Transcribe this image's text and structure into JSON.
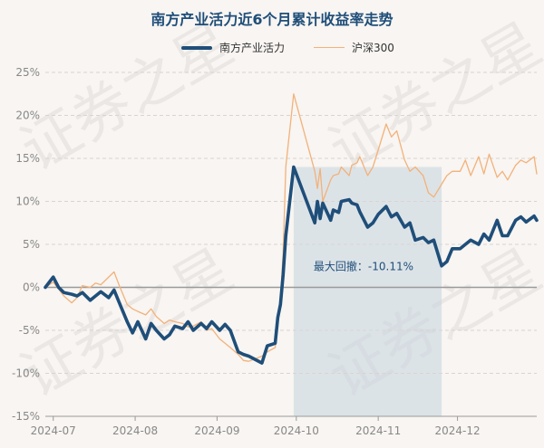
{
  "chart_data": {
    "type": "line",
    "title": "南方产业活力近6个月累计收益率走势",
    "xlabel": "",
    "ylabel": "",
    "ylim": [
      -15,
      25
    ],
    "y_ticks": [
      25,
      20,
      15,
      10,
      5,
      0,
      -5,
      -10,
      -15
    ],
    "y_tick_labels": [
      "25%",
      "20%",
      "15%",
      "10%",
      "5%",
      "0%",
      "-5%",
      "-10%",
      "-15%"
    ],
    "x_range": [
      "2024-06-28",
      "2024-12-31"
    ],
    "x_ticks": [
      "2024-07-01",
      "2024-08-01",
      "2024-09-01",
      "2024-10-01",
      "2024-11-01",
      "2024-12-01"
    ],
    "x_tick_labels": [
      "2024-07",
      "2024-08",
      "2024-09",
      "2024-10",
      "2024-11",
      "2024-12"
    ],
    "grid": "horizontal dashed",
    "legend_position": "top-center",
    "series": [
      {
        "name": "南方产业活力",
        "color": "#1f4e79",
        "points": [
          [
            "2024-06-28",
            0
          ],
          [
            "2024-07-01",
            1.2
          ],
          [
            "2024-07-03",
            0
          ],
          [
            "2024-07-05",
            -0.6
          ],
          [
            "2024-07-08",
            -0.8
          ],
          [
            "2024-07-10",
            -1.0
          ],
          [
            "2024-07-12",
            -0.6
          ],
          [
            "2024-07-15",
            -1.5
          ],
          [
            "2024-07-17",
            -1.0
          ],
          [
            "2024-07-19",
            -0.5
          ],
          [
            "2024-07-22",
            -1.2
          ],
          [
            "2024-07-24",
            -0.3
          ],
          [
            "2024-07-26",
            -1.8
          ],
          [
            "2024-07-29",
            -4.0
          ],
          [
            "2024-07-31",
            -5.3
          ],
          [
            "2024-08-02",
            -4.0
          ],
          [
            "2024-08-05",
            -6.0
          ],
          [
            "2024-08-07",
            -4.2
          ],
          [
            "2024-08-09",
            -5.0
          ],
          [
            "2024-08-12",
            -6.0
          ],
          [
            "2024-08-14",
            -5.5
          ],
          [
            "2024-08-16",
            -4.5
          ],
          [
            "2024-08-19",
            -4.8
          ],
          [
            "2024-08-21",
            -4.0
          ],
          [
            "2024-08-23",
            -5.0
          ],
          [
            "2024-08-26",
            -4.2
          ],
          [
            "2024-08-28",
            -4.8
          ],
          [
            "2024-08-30",
            -4.0
          ],
          [
            "2024-09-02",
            -5.0
          ],
          [
            "2024-09-04",
            -4.3
          ],
          [
            "2024-09-06",
            -5.0
          ],
          [
            "2024-09-09",
            -7.5
          ],
          [
            "2024-09-11",
            -7.8
          ],
          [
            "2024-09-13",
            -8.0
          ],
          [
            "2024-09-18",
            -8.8
          ],
          [
            "2024-09-20",
            -6.8
          ],
          [
            "2024-09-23",
            -6.5
          ],
          [
            "2024-09-24",
            -3.5
          ],
          [
            "2024-09-25",
            -2.0
          ],
          [
            "2024-09-26",
            1.5
          ],
          [
            "2024-09-27",
            6.0
          ],
          [
            "2024-09-30",
            14.0
          ],
          [
            "2024-10-08",
            7.5
          ],
          [
            "2024-10-09",
            10.0
          ],
          [
            "2024-10-10",
            8.0
          ],
          [
            "2024-10-11",
            9.8
          ],
          [
            "2024-10-14",
            7.8
          ],
          [
            "2024-10-15",
            9.0
          ],
          [
            "2024-10-17",
            8.7
          ],
          [
            "2024-10-18",
            10.0
          ],
          [
            "2024-10-21",
            10.2
          ],
          [
            "2024-10-22",
            9.8
          ],
          [
            "2024-10-24",
            9.6
          ],
          [
            "2024-10-25",
            8.8
          ],
          [
            "2024-10-28",
            7.0
          ],
          [
            "2024-10-30",
            7.5
          ],
          [
            "2024-11-01",
            8.5
          ],
          [
            "2024-11-04",
            9.4
          ],
          [
            "2024-11-06",
            8.2
          ],
          [
            "2024-11-08",
            8.6
          ],
          [
            "2024-11-11",
            7.0
          ],
          [
            "2024-11-13",
            7.5
          ],
          [
            "2024-11-15",
            5.5
          ],
          [
            "2024-11-18",
            5.8
          ],
          [
            "2024-11-20",
            5.2
          ],
          [
            "2024-11-22",
            5.5
          ],
          [
            "2024-11-25",
            2.5
          ],
          [
            "2024-11-27",
            3.0
          ],
          [
            "2024-11-29",
            4.5
          ],
          [
            "2024-12-02",
            4.5
          ],
          [
            "2024-12-04",
            5.0
          ],
          [
            "2024-12-06",
            5.5
          ],
          [
            "2024-12-09",
            5.0
          ],
          [
            "2024-12-11",
            6.2
          ],
          [
            "2024-12-13",
            5.5
          ],
          [
            "2024-12-16",
            7.8
          ],
          [
            "2024-12-18",
            6.0
          ],
          [
            "2024-12-20",
            6.0
          ],
          [
            "2024-12-23",
            7.8
          ],
          [
            "2024-12-25",
            8.2
          ],
          [
            "2024-12-27",
            7.6
          ],
          [
            "2024-12-30",
            8.3
          ],
          [
            "2024-12-31",
            7.8
          ]
        ]
      },
      {
        "name": "沪深300",
        "color": "#f2b27a",
        "points": [
          [
            "2024-06-28",
            0
          ],
          [
            "2024-07-01",
            0.6
          ],
          [
            "2024-07-03",
            -0.2
          ],
          [
            "2024-07-05",
            -1.0
          ],
          [
            "2024-07-08",
            -1.8
          ],
          [
            "2024-07-10",
            -1.2
          ],
          [
            "2024-07-12",
            0.2
          ],
          [
            "2024-07-15",
            0.0
          ],
          [
            "2024-07-17",
            0.5
          ],
          [
            "2024-07-19",
            0.3
          ],
          [
            "2024-07-22",
            1.2
          ],
          [
            "2024-07-24",
            1.8
          ],
          [
            "2024-07-26",
            0.2
          ],
          [
            "2024-07-29",
            -2.0
          ],
          [
            "2024-07-31",
            -2.5
          ],
          [
            "2024-08-02",
            -2.8
          ],
          [
            "2024-08-05",
            -3.2
          ],
          [
            "2024-08-07",
            -2.5
          ],
          [
            "2024-08-09",
            -3.4
          ],
          [
            "2024-08-12",
            -4.2
          ],
          [
            "2024-08-14",
            -3.8
          ],
          [
            "2024-08-16",
            -4.0
          ],
          [
            "2024-08-19",
            -4.2
          ],
          [
            "2024-08-21",
            -4.6
          ],
          [
            "2024-08-23",
            -4.5
          ],
          [
            "2024-08-26",
            -4.0
          ],
          [
            "2024-08-28",
            -5.0
          ],
          [
            "2024-08-30",
            -4.8
          ],
          [
            "2024-09-02",
            -6.0
          ],
          [
            "2024-09-04",
            -6.5
          ],
          [
            "2024-09-06",
            -7.0
          ],
          [
            "2024-09-09",
            -7.8
          ],
          [
            "2024-09-11",
            -8.5
          ],
          [
            "2024-09-13",
            -8.6
          ],
          [
            "2024-09-18",
            -8.0
          ],
          [
            "2024-09-20",
            -7.5
          ],
          [
            "2024-09-23",
            -7.0
          ],
          [
            "2024-09-24",
            -4.0
          ],
          [
            "2024-09-25",
            -1.5
          ],
          [
            "2024-09-26",
            4.0
          ],
          [
            "2024-09-27",
            14.0
          ],
          [
            "2024-09-30",
            22.5
          ],
          [
            "2024-10-08",
            13.5
          ],
          [
            "2024-10-09",
            11.5
          ],
          [
            "2024-10-10",
            13.8
          ],
          [
            "2024-10-11",
            10.0
          ],
          [
            "2024-10-14",
            12.5
          ],
          [
            "2024-10-15",
            13.0
          ],
          [
            "2024-10-17",
            13.2
          ],
          [
            "2024-10-18",
            14.0
          ],
          [
            "2024-10-21",
            13.0
          ],
          [
            "2024-10-22",
            14.2
          ],
          [
            "2024-10-24",
            14.5
          ],
          [
            "2024-10-25",
            15.2
          ],
          [
            "2024-10-28",
            13.0
          ],
          [
            "2024-10-30",
            14.0
          ],
          [
            "2024-11-01",
            16.0
          ],
          [
            "2024-11-04",
            19.0
          ],
          [
            "2024-11-06",
            17.5
          ],
          [
            "2024-11-08",
            18.2
          ],
          [
            "2024-11-11",
            14.8
          ],
          [
            "2024-11-13",
            13.5
          ],
          [
            "2024-11-15",
            14.0
          ],
          [
            "2024-11-18",
            13.0
          ],
          [
            "2024-11-20",
            11.0
          ],
          [
            "2024-11-22",
            10.5
          ],
          [
            "2024-11-25",
            12.0
          ],
          [
            "2024-11-27",
            13.0
          ],
          [
            "2024-11-29",
            13.5
          ],
          [
            "2024-12-02",
            13.5
          ],
          [
            "2024-12-04",
            14.8
          ],
          [
            "2024-12-06",
            13.0
          ],
          [
            "2024-12-09",
            15.2
          ],
          [
            "2024-12-11",
            13.2
          ],
          [
            "2024-12-13",
            15.5
          ],
          [
            "2024-12-16",
            12.8
          ],
          [
            "2024-12-18",
            13.5
          ],
          [
            "2024-12-20",
            12.5
          ],
          [
            "2024-12-23",
            14.2
          ],
          [
            "2024-12-25",
            14.8
          ],
          [
            "2024-12-27",
            14.5
          ],
          [
            "2024-12-30",
            15.2
          ],
          [
            "2024-12-31",
            13.2
          ]
        ]
      }
    ],
    "drawdown": {
      "label": "最大回撤：-10.11%",
      "start": "2024-09-30",
      "end": "2024-11-25",
      "color": "#c5d3df"
    },
    "watermark": "证券之星"
  }
}
